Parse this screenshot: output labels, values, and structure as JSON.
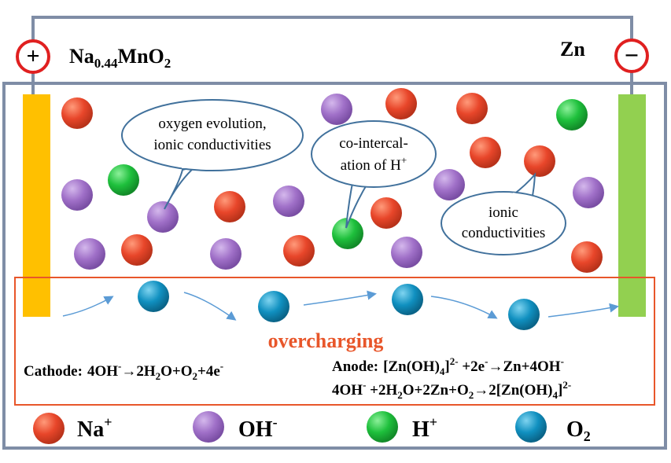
{
  "electrodes": {
    "positive": {
      "sign": "+",
      "material_main": "Na",
      "material_sub": "0.44",
      "material_rest": "MnO",
      "material_sub2": "2",
      "color": "#FFC000"
    },
    "negative": {
      "sign": "−",
      "material": "Zn",
      "color": "#92D050"
    }
  },
  "callouts": {
    "oxygen": {
      "line1": "oxygen evolution,",
      "line2": "ionic conductivities"
    },
    "cointercalation": {
      "line1": "co-intercal-",
      "line2a": "ation of H",
      "line2_sup": "+"
    },
    "ionic": {
      "line1": "ionic",
      "line2": "conductivities"
    }
  },
  "overcharge": {
    "title": "overcharging",
    "title_color": "#E8562A",
    "cathode": {
      "label": "Cathode:",
      "p1": "4OH",
      "sup1": "-",
      "p2": "→2H",
      "sub1": "2",
      "p3": "O+O",
      "sub2": "2",
      "p4": "+4e",
      "sup2": "-"
    },
    "anode": {
      "label": "Anode:",
      "p1": "[Zn(OH)",
      "sub1": "4",
      "p2": "]",
      "sup1": "2-",
      "p3": " +2e",
      "sup2": "-",
      "p4": "→Zn+4OH",
      "sup3": "-"
    },
    "overall": {
      "p1": "4OH",
      "sup1": "-",
      "p2": " +2H",
      "sub1": "2",
      "p3": "O+2Zn+O",
      "sub2": "2",
      "p4": "→2[Zn(OH)",
      "sub3": "4",
      "p5": "]",
      "sup2": "2-"
    }
  },
  "legend": [
    {
      "base": "Na",
      "sup": "+",
      "sub": "",
      "color": "#E8462A"
    },
    {
      "base": "OH",
      "sup": "-",
      "sub": "",
      "color": "#A070C8"
    },
    {
      "base": "H",
      "sup": "+",
      "sub": "",
      "color": "#1EC03C"
    },
    {
      "base": "O",
      "sup": "",
      "sub": "2",
      "color": "#1090C0"
    }
  ],
  "colors": {
    "frame": "#7F8DA6",
    "sign_ring": "#E02020",
    "callout_stroke": "#41719C",
    "overcharge_border": "#E8562A",
    "arrow": "#5B9BD5"
  }
}
